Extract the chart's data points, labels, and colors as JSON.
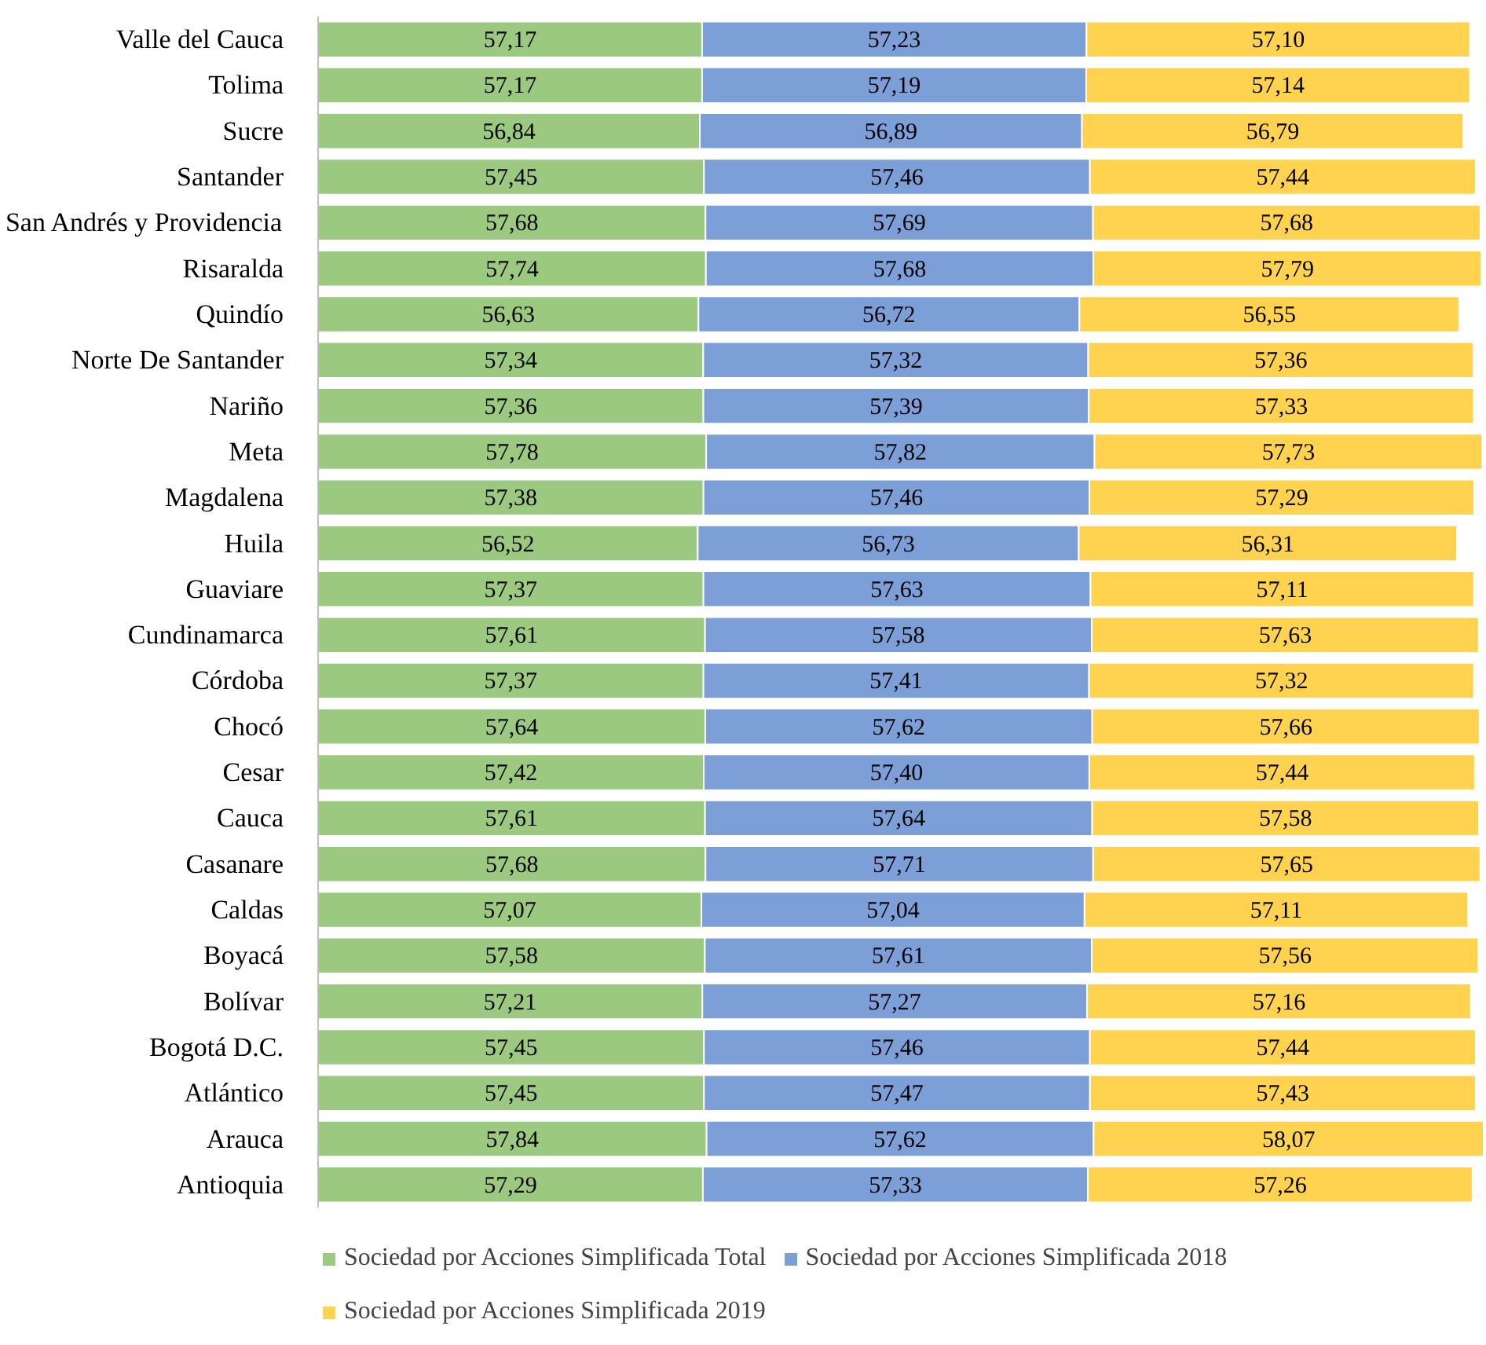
{
  "chart_data": {
    "type": "bar",
    "orientation": "horizontal",
    "stacked": true,
    "xlim": [
      0,
      174
    ],
    "tick_labels": "y",
    "grid": false,
    "legend": "bottom",
    "categories": [
      "Valle del Cauca",
      "Tolima",
      "Sucre",
      "Santander",
      "San Andrés y Providencia",
      "Risaralda",
      "Quindío",
      "Norte De Santander",
      "Nariño",
      "Meta",
      "Magdalena",
      "Huila",
      "Guaviare",
      "Cundinamarca",
      "Córdoba",
      "Chocó",
      "Cesar",
      "Cauca",
      "Casanare",
      "Caldas",
      "Boyacá",
      "Bolívar",
      "Bogotá D.C.",
      "Atlántico",
      "Arauca",
      "Antioquia"
    ],
    "series": [
      {
        "name": "Sociedad por Acciones Simplificada Total",
        "color": "#9bc97f",
        "values": [
          57.17,
          57.17,
          56.84,
          57.45,
          57.68,
          57.74,
          56.63,
          57.34,
          57.36,
          57.78,
          57.38,
          56.52,
          57.37,
          57.61,
          57.37,
          57.64,
          57.42,
          57.61,
          57.68,
          57.07,
          57.58,
          57.21,
          57.45,
          57.45,
          57.84,
          57.29
        ],
        "value_labels": [
          "57,17",
          "57,17",
          "56,84",
          "57,45",
          "57,68",
          "57,74",
          "56,63",
          "57,34",
          "57,36",
          "57,78",
          "57,38",
          "56,52",
          "57,37",
          "57,61",
          "57,37",
          "57,64",
          "57,42",
          "57,61",
          "57,68",
          "57,07",
          "57,58",
          "57,21",
          "57,45",
          "57,45",
          "57,84",
          "57,29"
        ]
      },
      {
        "name": "Sociedad por Acciones Simplificada 2018",
        "color": "#7d9fd8",
        "values": [
          57.23,
          57.19,
          56.89,
          57.46,
          57.69,
          57.68,
          56.72,
          57.32,
          57.39,
          57.82,
          57.46,
          56.73,
          57.63,
          57.58,
          57.41,
          57.62,
          57.4,
          57.64,
          57.71,
          57.04,
          57.61,
          57.27,
          57.46,
          57.47,
          57.62,
          57.33
        ],
        "value_labels": [
          "57,23",
          "57,19",
          "56,89",
          "57,46",
          "57,69",
          "57,68",
          "56,72",
          "57,32",
          "57,39",
          "57,82",
          "57,46",
          "56,73",
          "57,63",
          "57,58",
          "57,41",
          "57,62",
          "57,40",
          "57,64",
          "57,71",
          "57,04",
          "57,61",
          "57,27",
          "57,46",
          "57,47",
          "57,62",
          "57,33"
        ]
      },
      {
        "name": "Sociedad por Acciones Simplificada 2019",
        "color": "#ffd34f",
        "values": [
          57.1,
          57.14,
          56.79,
          57.44,
          57.68,
          57.79,
          56.55,
          57.36,
          57.33,
          57.73,
          57.29,
          56.31,
          57.11,
          57.63,
          57.32,
          57.66,
          57.44,
          57.58,
          57.65,
          57.11,
          57.56,
          57.16,
          57.44,
          57.43,
          58.07,
          57.26
        ],
        "value_labels": [
          "57,10",
          "57,14",
          "56,79",
          "57,44",
          "57,68",
          "57,79",
          "56,55",
          "57,36",
          "57,33",
          "57,73",
          "57,29",
          "56,31",
          "57,11",
          "57,63",
          "57,32",
          "57,66",
          "57,44",
          "57,58",
          "57,65",
          "57,11",
          "57,56",
          "57,16",
          "57,44",
          "57,43",
          "58,07",
          "57,26"
        ]
      }
    ]
  }
}
